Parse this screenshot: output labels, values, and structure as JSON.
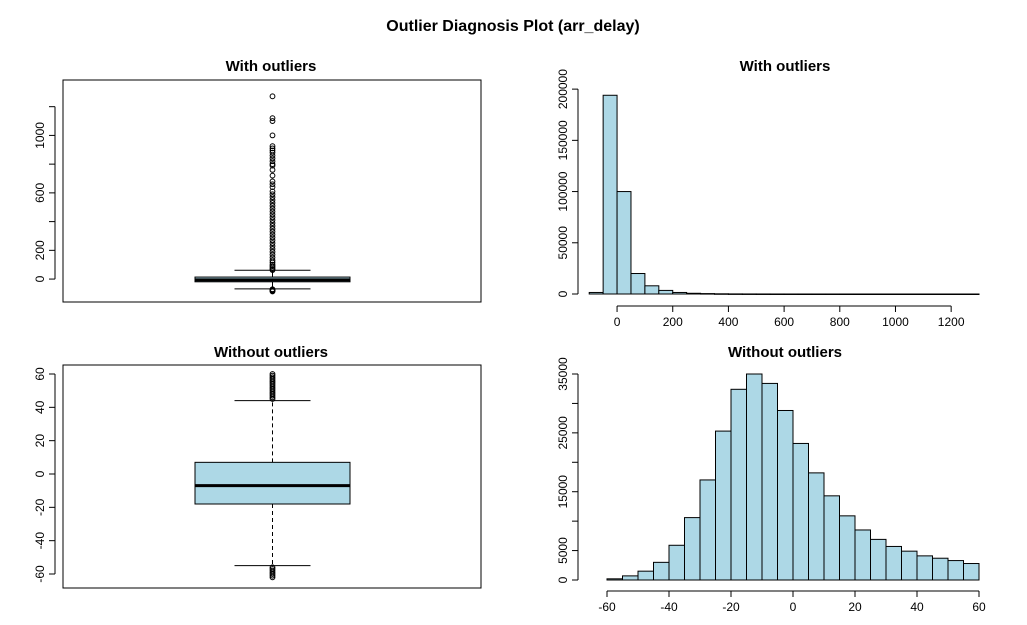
{
  "title": "Outlier Diagnosis Plot (arr_delay)",
  "colors": {
    "fill": "#add8e6",
    "stroke": "#000000",
    "background": "#ffffff"
  },
  "chart_data": [
    {
      "type": "box",
      "title": "With outliers",
      "ylim": [
        -90,
        1330
      ],
      "y_ticks": [
        0,
        200,
        600,
        1000
      ],
      "y_minor_ticks": [
        400,
        800,
        1200
      ],
      "stats": {
        "lower_whisker": -68,
        "q1": -19,
        "median": -6,
        "q3": 14,
        "upper_whisker": 61
      },
      "outliers_low": [
        -86,
        -82,
        -78,
        -74,
        -71
      ],
      "outliers_high": [
        63,
        70,
        80,
        90,
        100,
        115,
        130,
        150,
        170,
        190,
        210,
        230,
        250,
        270,
        290,
        310,
        330,
        350,
        370,
        390,
        410,
        430,
        450,
        470,
        490,
        510,
        530,
        550,
        570,
        590,
        610,
        640,
        660,
        680,
        720,
        760,
        790,
        800,
        820,
        840,
        860,
        880,
        895,
        910,
        925,
        1000,
        1100,
        1120,
        1272
      ]
    },
    {
      "type": "histogram",
      "title": "With outliers",
      "xlim": [
        -90,
        1300
      ],
      "ylim": [
        0,
        205000
      ],
      "x_ticks": [
        0,
        200,
        400,
        600,
        800,
        1000,
        1200
      ],
      "y_ticks": [
        0,
        50000,
        100000,
        150000,
        200000
      ],
      "bins": [
        {
          "x0": -100,
          "x1": -50,
          "count": 1500
        },
        {
          "x0": -50,
          "x1": 0,
          "count": 194000
        },
        {
          "x0": 0,
          "x1": 50,
          "count": 100000
        },
        {
          "x0": 50,
          "x1": 100,
          "count": 20000
        },
        {
          "x0": 100,
          "x1": 150,
          "count": 8000
        },
        {
          "x0": 150,
          "x1": 200,
          "count": 3500
        },
        {
          "x0": 200,
          "x1": 250,
          "count": 1500
        },
        {
          "x0": 250,
          "x1": 300,
          "count": 700
        },
        {
          "x0": 300,
          "x1": 350,
          "count": 400
        },
        {
          "x0": 350,
          "x1": 400,
          "count": 200
        },
        {
          "x0": 400,
          "x1": 450,
          "count": 100
        },
        {
          "x0": 450,
          "x1": 500,
          "count": 60
        },
        {
          "x0": 500,
          "x1": 550,
          "count": 40
        },
        {
          "x0": 550,
          "x1": 600,
          "count": 20
        },
        {
          "x0": 600,
          "x1": 650,
          "count": 15
        },
        {
          "x0": 650,
          "x1": 700,
          "count": 10
        },
        {
          "x0": 700,
          "x1": 750,
          "count": 8
        },
        {
          "x0": 750,
          "x1": 800,
          "count": 6
        },
        {
          "x0": 800,
          "x1": 850,
          "count": 4
        },
        {
          "x0": 850,
          "x1": 900,
          "count": 3
        },
        {
          "x0": 900,
          "x1": 950,
          "count": 2
        },
        {
          "x0": 950,
          "x1": 1000,
          "count": 1
        },
        {
          "x0": 1000,
          "x1": 1050,
          "count": 1
        },
        {
          "x0": 1050,
          "x1": 1100,
          "count": 1
        },
        {
          "x0": 1100,
          "x1": 1150,
          "count": 1
        },
        {
          "x0": 1150,
          "x1": 1200,
          "count": 1
        },
        {
          "x0": 1200,
          "x1": 1250,
          "count": 1
        },
        {
          "x0": 1250,
          "x1": 1300,
          "count": 1
        }
      ]
    },
    {
      "type": "box",
      "title": "Without outliers",
      "ylim": [
        -63,
        60
      ],
      "y_ticks": [
        -60,
        -40,
        -20,
        0,
        20,
        40,
        60
      ],
      "y_minor_ticks": [],
      "stats": {
        "lower_whisker": -55,
        "q1": -18,
        "median": -7,
        "q3": 7,
        "upper_whisker": 44
      },
      "outliers_low": [
        -56,
        -57,
        -58,
        -59,
        -60,
        -61,
        -62
      ],
      "outliers_high": [
        45,
        46,
        47,
        48,
        49,
        50,
        51,
        52,
        53,
        54,
        55,
        56,
        57,
        58,
        59,
        60
      ]
    },
    {
      "type": "histogram",
      "title": "Without outliers",
      "xlim": [
        -60,
        60
      ],
      "ylim": [
        0,
        35000
      ],
      "x_ticks": [
        -60,
        -40,
        -20,
        0,
        20,
        40,
        60
      ],
      "y_ticks": [
        0,
        5000,
        15000,
        25000,
        35000
      ],
      "y_minor_ticks": [
        10000,
        20000,
        30000
      ],
      "bins": [
        {
          "x0": -60,
          "x1": -55,
          "count": 200
        },
        {
          "x0": -55,
          "x1": -50,
          "count": 700
        },
        {
          "x0": -50,
          "x1": -45,
          "count": 1500
        },
        {
          "x0": -45,
          "x1": -40,
          "count": 3000
        },
        {
          "x0": -40,
          "x1": -35,
          "count": 5900
        },
        {
          "x0": -35,
          "x1": -30,
          "count": 10600
        },
        {
          "x0": -30,
          "x1": -25,
          "count": 17000
        },
        {
          "x0": -25,
          "x1": -20,
          "count": 25300
        },
        {
          "x0": -20,
          "x1": -15,
          "count": 32400
        },
        {
          "x0": -15,
          "x1": -10,
          "count": 35000
        },
        {
          "x0": -10,
          "x1": -5,
          "count": 33400
        },
        {
          "x0": -5,
          "x1": 0,
          "count": 28800
        },
        {
          "x0": 0,
          "x1": 5,
          "count": 23200
        },
        {
          "x0": 5,
          "x1": 10,
          "count": 18200
        },
        {
          "x0": 10,
          "x1": 15,
          "count": 14300
        },
        {
          "x0": 15,
          "x1": 20,
          "count": 10900
        },
        {
          "x0": 20,
          "x1": 25,
          "count": 8500
        },
        {
          "x0": 25,
          "x1": 30,
          "count": 6900
        },
        {
          "x0": 30,
          "x1": 35,
          "count": 5700
        },
        {
          "x0": 35,
          "x1": 40,
          "count": 4900
        },
        {
          "x0": 40,
          "x1": 45,
          "count": 4100
        },
        {
          "x0": 45,
          "x1": 50,
          "count": 3700
        },
        {
          "x0": 50,
          "x1": 55,
          "count": 3300
        },
        {
          "x0": 55,
          "x1": 60,
          "count": 2800
        }
      ]
    }
  ]
}
